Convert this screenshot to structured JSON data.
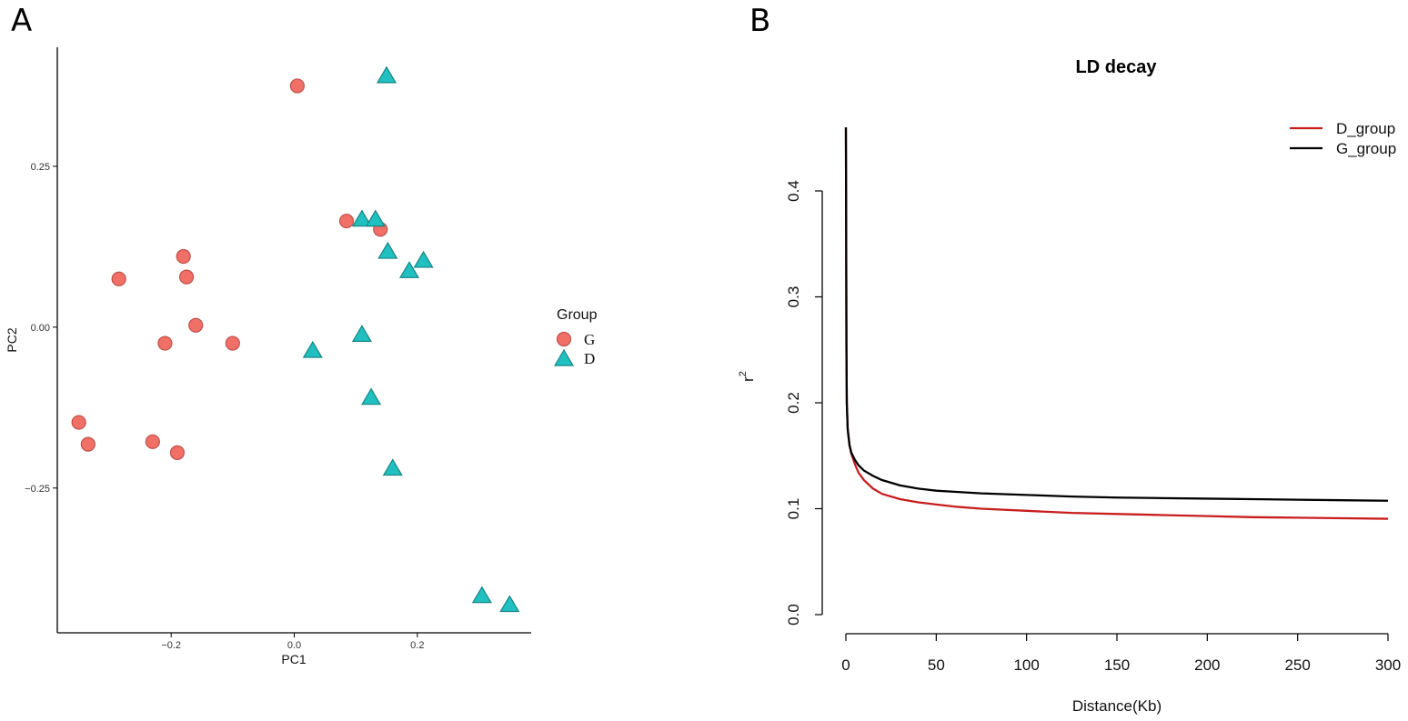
{
  "panels": {
    "a": {
      "letter": "A"
    },
    "b": {
      "letter": "B"
    }
  },
  "chart_data": [
    {
      "type": "scatter",
      "title": "",
      "xlabel": "PC1",
      "ylabel": "PC2",
      "xticks": [
        -0.2,
        0.0,
        0.2
      ],
      "xtick_labels": [
        "−0.2",
        "0.0",
        "0.2"
      ],
      "yticks": [
        -0.25,
        0.0,
        0.25
      ],
      "ytick_labels": [
        "−0.25",
        "0.00",
        "0.25"
      ],
      "xlim": [
        -0.385,
        0.385
      ],
      "ylim": [
        -0.475,
        0.435
      ],
      "legend": {
        "title": "Group",
        "position": "right"
      },
      "series": [
        {
          "name": "G",
          "marker": "circle",
          "color": "#f07068",
          "edge": "#c0504a",
          "points": [
            [
              0.005,
              0.375
            ],
            [
              0.085,
              0.165
            ],
            [
              0.14,
              0.152
            ],
            [
              -0.18,
              0.11
            ],
            [
              -0.285,
              0.075
            ],
            [
              -0.175,
              0.078
            ],
            [
              -0.16,
              0.003
            ],
            [
              -0.21,
              -0.025
            ],
            [
              -0.1,
              -0.025
            ],
            [
              -0.35,
              -0.148
            ],
            [
              -0.335,
              -0.182
            ],
            [
              -0.23,
              -0.178
            ],
            [
              -0.19,
              -0.195
            ]
          ]
        },
        {
          "name": "D",
          "marker": "triangle",
          "color": "#20c0c0",
          "edge": "#178585",
          "points": [
            [
              0.15,
              0.39
            ],
            [
              0.11,
              0.167
            ],
            [
              0.132,
              0.167
            ],
            [
              0.152,
              0.117
            ],
            [
              0.21,
              0.103
            ],
            [
              0.187,
              0.087
            ],
            [
              0.03,
              -0.037
            ],
            [
              0.11,
              -0.012
            ],
            [
              0.125,
              -0.11
            ],
            [
              0.16,
              -0.22
            ],
            [
              0.305,
              -0.418
            ],
            [
              0.35,
              -0.432
            ]
          ]
        }
      ]
    },
    {
      "type": "line",
      "title": "LD decay",
      "xlabel": "Distance(Kb)",
      "ylabel": "r",
      "ylabel_superscript": "2",
      "xlim": [
        0,
        300
      ],
      "ylim": [
        0,
        0.4
      ],
      "xticks": [
        0,
        50,
        100,
        150,
        200,
        250,
        300
      ],
      "xtick_labels": [
        "0",
        "50",
        "100",
        "150",
        "200",
        "250",
        "300"
      ],
      "yticks": [
        0.0,
        0.1,
        0.2,
        0.3,
        0.4
      ],
      "ytick_labels": [
        "0.0",
        "0.1",
        "0.2",
        "0.3",
        "0.4"
      ],
      "legend": {
        "position": "top-right"
      },
      "series": [
        {
          "name": "D_group",
          "color": "#c81e1e",
          "x": [
            0,
            0.1,
            0.3,
            0.5,
            1,
            2,
            3,
            5,
            7,
            10,
            15,
            20,
            30,
            40,
            50,
            60,
            75,
            100,
            125,
            150,
            175,
            200,
            225,
            250,
            275,
            300
          ],
          "y": [
            0.46,
            0.4,
            0.25,
            0.2,
            0.175,
            0.16,
            0.152,
            0.142,
            0.134,
            0.127,
            0.119,
            0.114,
            0.109,
            0.106,
            0.104,
            0.102,
            0.1,
            0.098,
            0.096,
            0.095,
            0.094,
            0.093,
            0.092,
            0.0915,
            0.091,
            0.0905
          ]
        },
        {
          "name": "G_group",
          "color": "#000000",
          "x": [
            0,
            0.1,
            0.3,
            0.5,
            1,
            2,
            3,
            5,
            7,
            10,
            15,
            20,
            30,
            40,
            50,
            60,
            75,
            100,
            125,
            150,
            175,
            200,
            225,
            250,
            275,
            300
          ],
          "y": [
            0.46,
            0.4,
            0.25,
            0.2,
            0.175,
            0.16,
            0.153,
            0.146,
            0.141,
            0.136,
            0.131,
            0.127,
            0.122,
            0.119,
            0.117,
            0.116,
            0.1145,
            0.113,
            0.1115,
            0.1105,
            0.11,
            0.1095,
            0.109,
            0.1085,
            0.108,
            0.1075
          ]
        }
      ]
    }
  ]
}
